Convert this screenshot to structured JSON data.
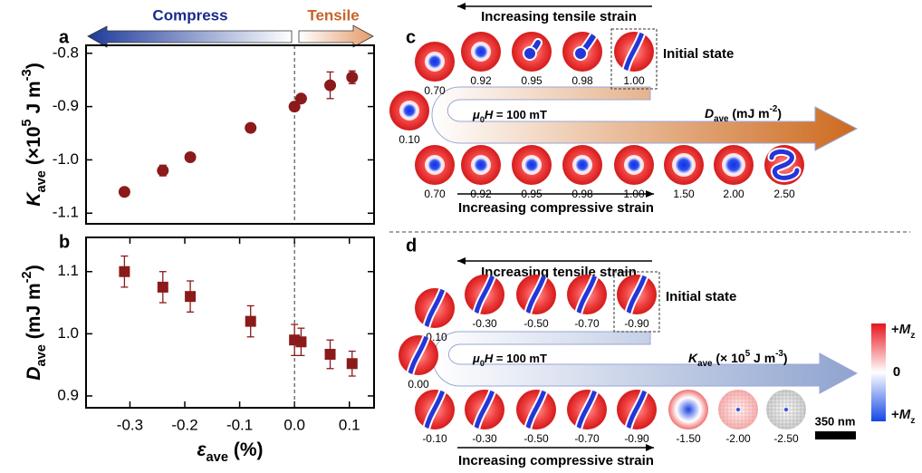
{
  "chart_data": [
    {
      "type": "scatter",
      "panel": "a",
      "ylabel": [
        {
          "text": "K",
          "style": "italic"
        },
        {
          "text": "ave",
          "style": "sub"
        },
        {
          "text": " (×10"
        },
        {
          "text": "5",
          "style": "sup"
        },
        {
          "text": " J m"
        },
        {
          "text": "-3",
          "style": "sup"
        },
        {
          "text": ")"
        }
      ],
      "x": [
        -0.31,
        -0.24,
        -0.19,
        -0.08,
        0.0,
        0.012,
        0.065,
        0.105
      ],
      "values": [
        -1.06,
        -1.02,
        -0.995,
        -0.94,
        -0.9,
        -0.885,
        -0.86,
        -0.845
      ],
      "errors": [
        0.006,
        0.01,
        0.004,
        0.004,
        0.008,
        0.006,
        0.025,
        0.012
      ],
      "marker": "circle",
      "color": "#8b1a1a",
      "xlim": [
        -0.38,
        0.145
      ],
      "ylim": [
        -1.12,
        -0.785
      ],
      "yticks": [
        -0.8,
        -0.9,
        {
          "value": -1,
          "label": "-1.0"
        },
        -1.1
      ],
      "ref_line_x": 0
    },
    {
      "type": "scatter",
      "panel": "b",
      "ylabel": [
        {
          "text": "D",
          "style": "italic"
        },
        {
          "text": "ave",
          "style": "sub"
        },
        {
          "text": " (mJ m"
        },
        {
          "text": "-2",
          "style": "sup"
        },
        {
          "text": ")"
        }
      ],
      "xlabel": [
        {
          "text": "ε",
          "style": "italic"
        },
        {
          "text": "ave",
          "style": "sub"
        },
        {
          "text": " (%)"
        }
      ],
      "x": [
        -0.31,
        -0.24,
        -0.19,
        -0.08,
        0.0,
        0.012,
        0.065,
        0.105
      ],
      "values": [
        1.1,
        1.075,
        1.06,
        1.02,
        0.99,
        0.987,
        0.967,
        0.952
      ],
      "errors": [
        0.025,
        0.025,
        0.025,
        0.025,
        0.025,
        0.022,
        0.023,
        0.02
      ],
      "marker": "square",
      "color": "#8b1a1a",
      "xlim": [
        -0.38,
        0.145
      ],
      "ylim": [
        0.881,
        1.155
      ],
      "xticks": [
        -0.3,
        -0.2,
        -0.1,
        {
          "value": 0,
          "label": "0.0"
        },
        0.1
      ],
      "yticks": [
        1.1,
        {
          "value": 1,
          "label": "1.0"
        },
        0.9
      ],
      "ref_line_x": 0
    }
  ],
  "strain_arrow": {
    "left": "Compress",
    "right": "Tensile"
  },
  "panel_c": {
    "label": "c",
    "top_arrow": "Increasing tensile strain",
    "bottom_arrow": "Increasing compressive strain",
    "initial_state": "Initial state",
    "field": [
      {
        "text": "μ",
        "style": "italic"
      },
      {
        "text": "0",
        "style": "sub"
      },
      {
        "text": "H",
        "style": "italic"
      },
      {
        "text": " = 100 mT"
      }
    ],
    "axis": [
      {
        "text": "D",
        "style": "italic"
      },
      {
        "text": "ave",
        "style": "sub"
      },
      {
        "text": " (mJ m"
      },
      {
        "text": "-2",
        "style": "sup"
      },
      {
        "text": ")"
      }
    ],
    "top_states": [
      "0.70",
      "0.92",
      "0.95",
      "0.98",
      "1.00"
    ],
    "middle_state": "0.10",
    "bottom_states": [
      "0.70",
      "0.92",
      "0.95",
      "0.98",
      "1.00",
      "1.50",
      "2.00",
      "2.50"
    ]
  },
  "panel_d": {
    "label": "d",
    "top_arrow": "Increasing tensile strain",
    "bottom_arrow": "Increasing compressive strain",
    "initial_state": "Initial state",
    "field": [
      {
        "text": "μ",
        "style": "italic"
      },
      {
        "text": "0",
        "style": "sub"
      },
      {
        "text": "H",
        "style": "italic"
      },
      {
        "text": " = 100 mT"
      }
    ],
    "axis": [
      {
        "text": "K",
        "style": "italic"
      },
      {
        "text": "ave",
        "style": "sub"
      },
      {
        "text": " (× 10"
      },
      {
        "text": "5",
        "style": "sup"
      },
      {
        "text": " J m"
      },
      {
        "text": "-3",
        "style": "sup"
      },
      {
        "text": ")"
      }
    ],
    "top_states": [
      "-0.10",
      "-0.30",
      "-0.50",
      "-0.70",
      "-0.90"
    ],
    "middle_state": "0.00",
    "bottom_states": [
      "-0.10",
      "-0.30",
      "-0.50",
      "-0.70",
      "-0.90",
      "-1.50",
      "-2.00",
      "-2.50"
    ]
  },
  "colorbar": {
    "top": [
      {
        "text": "+"
      },
      {
        "text": "M",
        "style": "italic"
      },
      {
        "text": "z",
        "style": "sub"
      }
    ],
    "middle": "0",
    "bottom": [
      {
        "text": "+"
      },
      {
        "text": "M",
        "style": "italic"
      },
      {
        "text": "z",
        "style": "sub"
      }
    ]
  },
  "scale_bar": "350 nm"
}
